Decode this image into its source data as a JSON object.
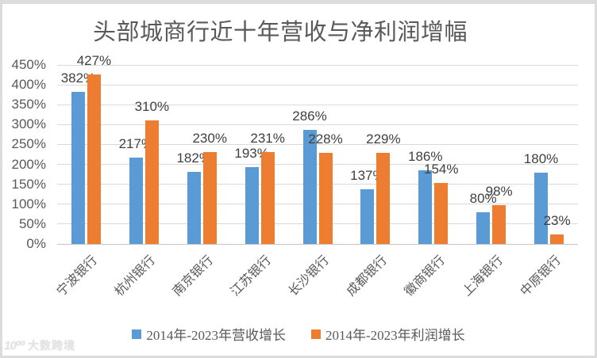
{
  "chart_data": {
    "type": "bar",
    "title": "头部城商行近十年营收与净利润增幅",
    "categories": [
      "宁波银行",
      "杭州银行",
      "南京银行",
      "江苏银行",
      "长沙银行",
      "成都银行",
      "徽商银行",
      "上海银行",
      "中原银行"
    ],
    "series": [
      {
        "name": "2014年-2023年营收增长",
        "color": "#5B9BD5",
        "values": [
          382,
          217,
          182,
          193,
          286,
          137,
          186,
          80,
          180
        ]
      },
      {
        "name": "2014年-2023年利润增长",
        "color": "#ED7D31",
        "values": [
          427,
          310,
          230,
          231,
          228,
          229,
          154,
          98,
          23
        ]
      }
    ],
    "data_labels": [
      [
        "382%",
        "217%",
        "182%",
        "193%",
        "286%",
        "137%",
        "186%",
        "80%",
        "180%"
      ],
      [
        "427%",
        "310%",
        "230%",
        "231%",
        "228%",
        "229%",
        "154%",
        "98%",
        "23%"
      ]
    ],
    "xlabel": "",
    "ylabel": "",
    "ylim": [
      0,
      450
    ],
    "ytick_step": 50,
    "ytick_labels": [
      "0%",
      "50%",
      "100%",
      "150%",
      "200%",
      "250%",
      "300%",
      "350%",
      "400%",
      "450%"
    ],
    "value_suffix": "%",
    "grid": true,
    "legend_position": "bottom",
    "colors": {
      "gridline": "#d9d9d9",
      "axis_text": "#595959",
      "label_text": "#404040"
    }
  },
  "watermark": {
    "logo": "10⁰⁰",
    "text": "大数跨境"
  }
}
